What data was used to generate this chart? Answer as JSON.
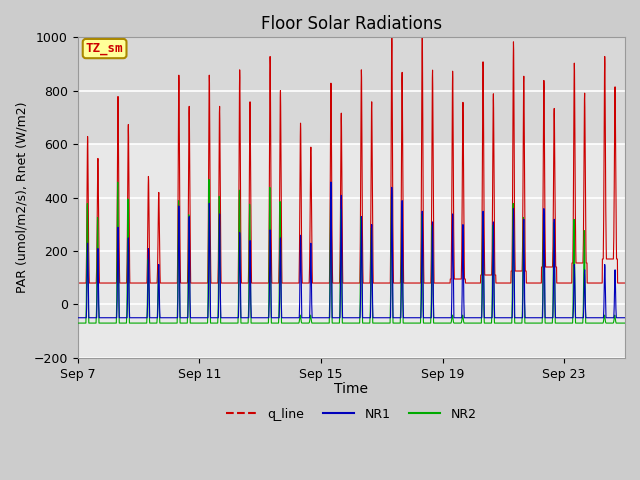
{
  "title": "Floor Solar Radiations",
  "xlabel": "Time",
  "ylabel": "PAR (umol/m2/s), Rnet (W/m2)",
  "ylim": [
    -200,
    1000
  ],
  "yticks": [
    -200,
    0,
    200,
    400,
    600,
    800,
    1000
  ],
  "xtick_labels": [
    "Sep 7",
    "Sep 11",
    "Sep 15",
    "Sep 19",
    "Sep 23"
  ],
  "xtick_positions": [
    0,
    4,
    8,
    12,
    16
  ],
  "legend_entries": [
    "q_line",
    "NR1",
    "NR2"
  ],
  "line_colors": {
    "q_line": "#cc0000",
    "NR1": "#0000bb",
    "NR2": "#00aa00"
  },
  "annotation_text": "TZ_sm",
  "annotation_color": "#cc0000",
  "annotation_bg": "#ffff99",
  "annotation_border": "#aa8800",
  "background_color": "#cccccc",
  "plot_bg_color": "#e8e8e8",
  "plot_bg_upper": "#d8d8d8",
  "grid_color": "#ffffff",
  "title_fontsize": 12,
  "label_fontsize": 10,
  "tick_fontsize": 9,
  "n_days": 18,
  "q_day_baseline": 80,
  "q_night_baseline": 80,
  "nr1_night": -50,
  "nr2_night": -70,
  "q_peaks": [
    550,
    700,
    400,
    780,
    780,
    800,
    850,
    600,
    750,
    800,
    930,
    940,
    780,
    800,
    860,
    700,
    750,
    760
  ],
  "nr1_peaks_am": [
    280,
    340,
    260,
    420,
    430,
    320,
    330,
    310,
    510,
    380,
    490,
    400,
    390,
    400,
    410,
    410,
    200,
    200
  ],
  "nr1_peaks_pm": [
    260,
    300,
    200,
    380,
    390,
    290,
    300,
    280,
    460,
    350,
    440,
    360,
    350,
    360,
    370,
    370,
    180,
    180
  ],
  "nr2_peaks_am": [
    450,
    530,
    240,
    460,
    540,
    500,
    510,
    30,
    480,
    400,
    490,
    410,
    30,
    410,
    450,
    420,
    390,
    30
  ],
  "nr2_peaks_pm": [
    400,
    470,
    200,
    410,
    480,
    450,
    460,
    30,
    430,
    360,
    440,
    370,
    30,
    370,
    400,
    380,
    350,
    30
  ]
}
